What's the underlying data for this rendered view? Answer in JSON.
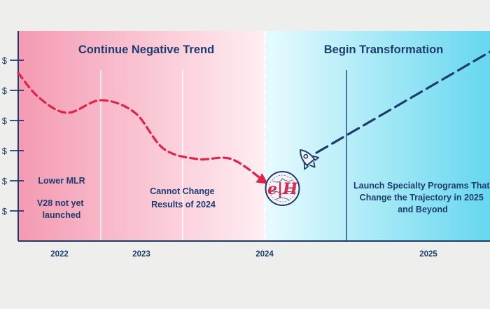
{
  "chart_data": {
    "type": "line",
    "sections": [
      {
        "title": "Continue Negative Trend",
        "start": 2021.83,
        "end": 2024.0
      },
      {
        "title": "Begin Transformation",
        "start": 2024.0,
        "end": 2025.83
      }
    ],
    "y_tick_labels": [
      "$",
      "$",
      "$",
      "$",
      "$",
      "$"
    ],
    "x_tick_labels": [
      {
        "label": "2022",
        "x": 2022.0
      },
      {
        "label": "2023",
        "x": 2022.6
      },
      {
        "label": "2024",
        "x": 2023.4
      },
      {
        "label": "2025",
        "x": 2024.8
      }
    ],
    "period_notes": [
      {
        "lines": [
          "Lower MLR"
        ],
        "x": 2022.0,
        "y": 1.52
      },
      {
        "lines": [
          "V28 not yet",
          "launched"
        ],
        "x": 2022.0,
        "y": 1.02
      },
      {
        "lines": [
          "Cannot Change",
          "Results of 2024"
        ],
        "x": 2022.6,
        "y": 1.22
      },
      {
        "lines": [
          "Launch Specialty Programs That",
          "Change the Trajectory in 2025",
          "and Beyond"
        ],
        "x": 2024.8,
        "y": 1.37
      }
    ],
    "series": [
      {
        "name": "Continue Negative Trend",
        "style": "dashed",
        "color": "#e02448",
        "x": [
          2021.67,
          2021.85,
          2022.1,
          2022.4,
          2022.7,
          2022.95,
          2023.25,
          2023.55,
          2023.85
        ],
        "y": [
          4.0,
          3.42,
          3.05,
          3.35,
          3.05,
          2.2,
          1.95,
          1.95,
          1.4
        ]
      },
      {
        "name": "Begin Transformation",
        "style": "dashed",
        "color": "#1d3d6e",
        "x": [
          2024.3,
          2025.83
        ],
        "y": [
          2.1,
          4.5
        ]
      }
    ],
    "ylim": [
      0,
      5
    ],
    "xlim": [
      2021.67,
      2025.83
    ],
    "markers": [
      {
        "name": "eh-logo",
        "label": "e|H",
        "x": 2024.0,
        "y": 1.25
      },
      {
        "name": "rocket",
        "x": 2024.25,
        "y": 2.1
      }
    ],
    "colors": {
      "red": "#e02448",
      "navy": "#1d3d6e",
      "pink_dark": "#f49ab2",
      "pink_light": "#ffeef2",
      "cyan_light": "#e8fbfe",
      "cyan_dark": "#66d7ef"
    }
  }
}
